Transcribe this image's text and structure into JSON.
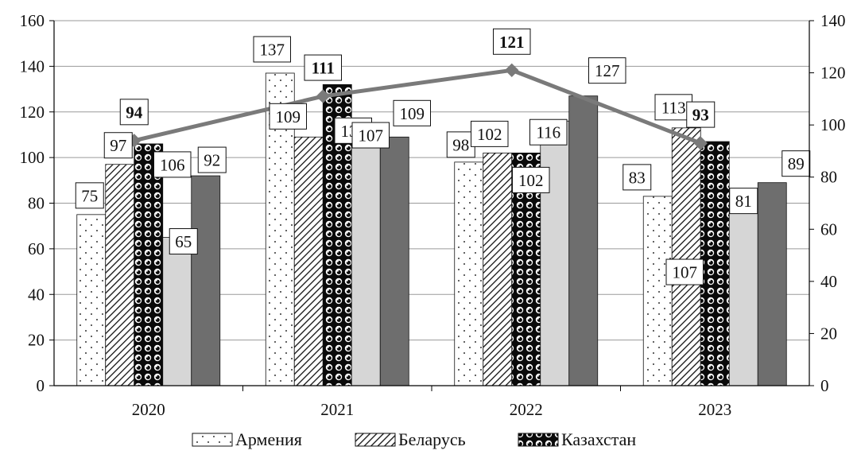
{
  "chart_data": {
    "type": "bar",
    "categories": [
      "2020",
      "2021",
      "2022",
      "2023"
    ],
    "series": [
      {
        "name": "Армения",
        "values": [
          75,
          137,
          98,
          83
        ],
        "axis": "left",
        "pattern": "dots"
      },
      {
        "name": "Беларусь",
        "values": [
          97,
          109,
          102,
          113
        ],
        "axis": "left",
        "pattern": "diagonal-hatch"
      },
      {
        "name": "Казахстан",
        "values": [
          106,
          132,
          102,
          107
        ],
        "axis": "left",
        "pattern": "black-balls"
      },
      {
        "values": [
          65,
          107,
          116,
          81
        ],
        "axis": "left",
        "pattern": "light-gray-solid"
      },
      {
        "values": [
          92,
          109,
          127,
          89
        ],
        "axis": "left",
        "pattern": "dark-gray-solid"
      },
      {
        "values": [
          94,
          111,
          121,
          93
        ],
        "axis": "right",
        "type": "line",
        "marker": "diamond",
        "bold_labels": true
      }
    ],
    "y_left": {
      "min": 0,
      "max": 160,
      "step": 20,
      "ticks": [
        "0",
        "20",
        "40",
        "60",
        "80",
        "100",
        "120",
        "140",
        "160"
      ]
    },
    "y_right": {
      "min": 0,
      "max": 140,
      "step": 20,
      "ticks": [
        "0",
        "20",
        "40",
        "60",
        "80",
        "100",
        "120",
        "140"
      ]
    },
    "grid": true,
    "legend_position": "bottom",
    "colors": {
      "light_gray": "#d6d6d6",
      "dark_gray": "#6e6e6e",
      "line": "#7a7a7a",
      "grid": "#9a9a9a",
      "text": "#111111"
    }
  }
}
